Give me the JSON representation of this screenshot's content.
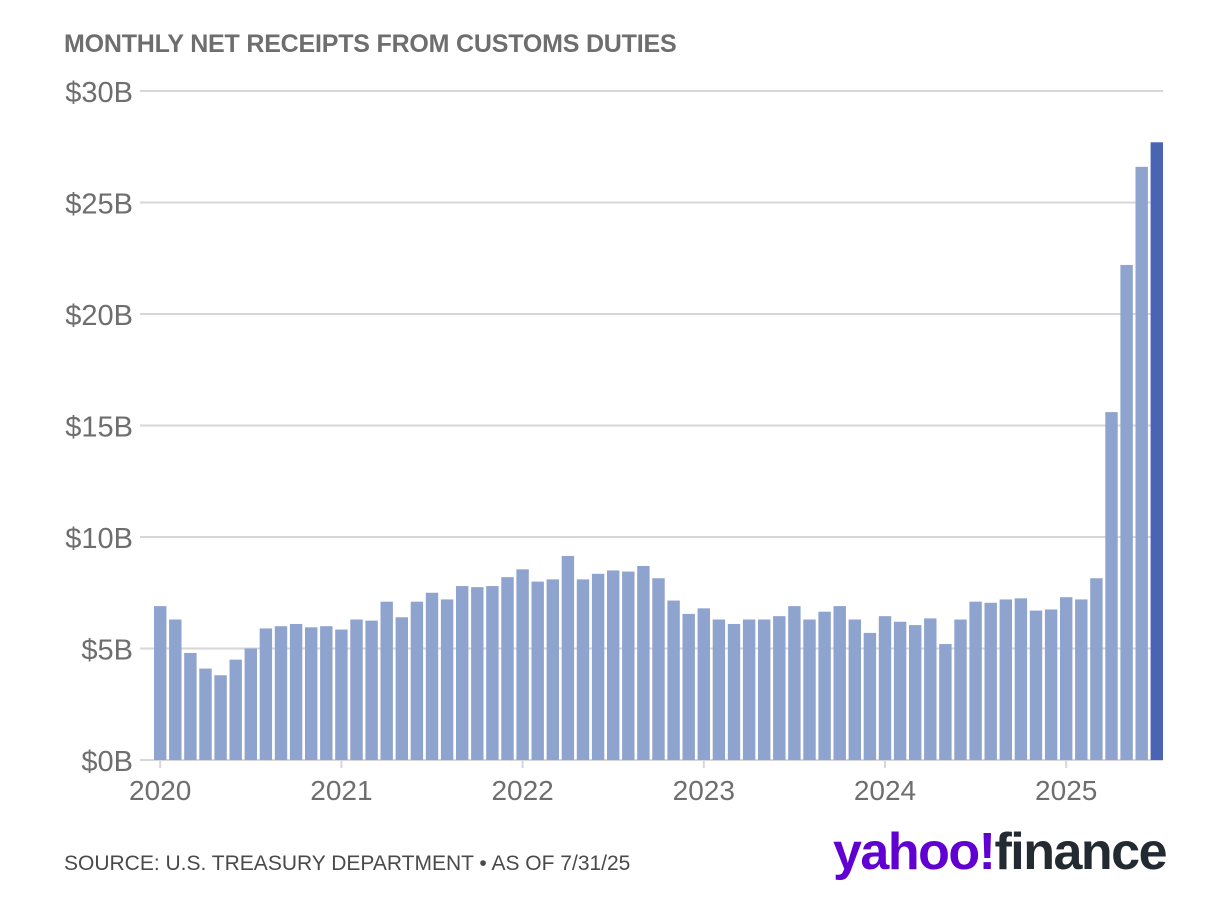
{
  "title": "MONTHLY NET RECEIPTS FROM CUSTOMS DUTIES",
  "source": "SOURCE: U.S. TREASURY DEPARTMENT • AS OF 7/31/25",
  "logo_text": "yahoo!finance",
  "colors": {
    "bar": "#8ea3cd",
    "bar_highlight": "#4a64b4",
    "grid": "#d6d6dc",
    "axis_text": "#6e6e6e",
    "logo_purple": "#6001d2",
    "logo_dark": "#232a31"
  },
  "chart_data": {
    "type": "bar",
    "xlabel": "",
    "ylabel": "",
    "ylim": [
      0,
      30
    ],
    "y_ticks": [
      0,
      5,
      10,
      15,
      20,
      25,
      30
    ],
    "y_tick_labels": [
      "$0B",
      "$5B",
      "$10B",
      "$15B",
      "$20B",
      "$25B",
      "$30B"
    ],
    "x_tick_labels": [
      "2020",
      "2021",
      "2022",
      "2023",
      "2024",
      "2025"
    ],
    "grid": true,
    "start": "2020-01",
    "end": "2025-07",
    "highlight_last": true,
    "values": [
      6.9,
      6.3,
      4.8,
      4.1,
      3.8,
      4.5,
      5.0,
      5.9,
      6.0,
      6.1,
      5.95,
      6.0,
      5.85,
      6.3,
      6.25,
      7.1,
      6.4,
      7.1,
      7.5,
      7.2,
      7.8,
      7.75,
      7.8,
      8.2,
      8.55,
      8.0,
      8.1,
      9.15,
      8.1,
      8.35,
      8.5,
      8.45,
      8.7,
      8.15,
      7.15,
      6.55,
      6.8,
      6.3,
      6.1,
      6.3,
      6.3,
      6.45,
      6.9,
      6.3,
      6.65,
      6.9,
      6.3,
      5.7,
      6.45,
      6.2,
      6.05,
      6.35,
      5.2,
      6.3,
      7.1,
      7.05,
      7.2,
      7.25,
      6.7,
      6.75,
      7.3,
      7.2,
      8.15,
      15.6,
      22.2,
      26.6,
      27.7
    ]
  }
}
